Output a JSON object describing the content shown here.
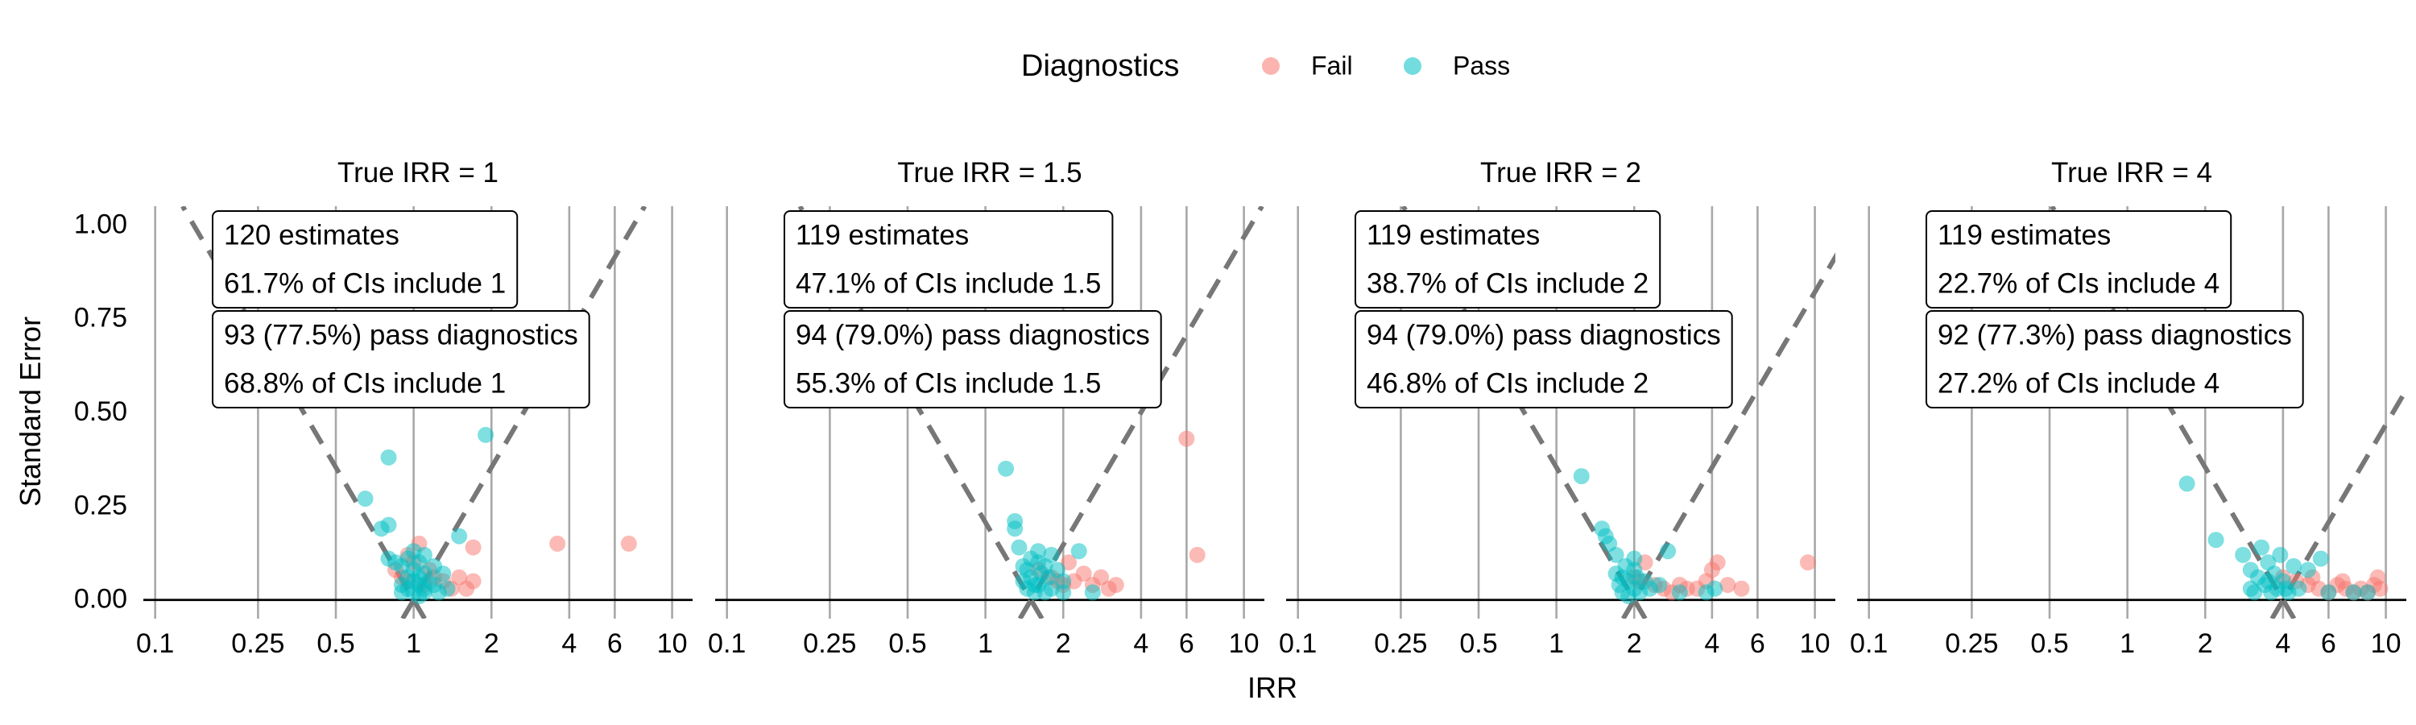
{
  "chart_data": {
    "type": "scatter",
    "facet_label": "True IRR",
    "xlabel": "IRR",
    "ylabel": "Standard Error",
    "x_scale": "log",
    "xlim": [
      0.09,
      12
    ],
    "ylim": [
      -0.05,
      1.05
    ],
    "x_ticks": [
      0.1,
      0.25,
      0.5,
      1,
      2,
      4,
      6,
      10
    ],
    "x_tick_labels": [
      "0.1",
      "0.25",
      "0.5",
      "1",
      "2",
      "4",
      "6",
      "10"
    ],
    "y_ticks": [
      0,
      0.25,
      0.5,
      0.75,
      1.0
    ],
    "y_tick_labels": [
      "0.00",
      "0.25",
      "0.50",
      "0.75",
      "1.00"
    ],
    "grid": true,
    "legend": {
      "title": "Diagnostics",
      "position": "top",
      "entries": [
        {
          "name": "Fail",
          "color": "#F8766D"
        },
        {
          "name": "Pass",
          "color": "#00BFC4"
        }
      ]
    },
    "panels": [
      {
        "title": "True IRR = 1",
        "true_irr": 1,
        "annotation_all": [
          "120 estimates",
          "61.7% of CIs include 1"
        ],
        "annotation_pass": [
          "93 (77.5%) pass diagnostics",
          "68.8% of CIs include 1"
        ],
        "series": [
          {
            "name": "Fail",
            "points": [
              [
                0.85,
                0.08
              ],
              [
                0.9,
                0.06
              ],
              [
                0.95,
                0.05
              ],
              [
                1.0,
                0.1
              ],
              [
                1.05,
                0.15
              ],
              [
                1.1,
                0.04
              ],
              [
                1.2,
                0.06
              ],
              [
                1.3,
                0.05
              ],
              [
                1.4,
                0.03
              ],
              [
                1.5,
                0.06
              ],
              [
                1.6,
                0.03
              ],
              [
                1.7,
                0.05
              ],
              [
                1.7,
                0.14
              ],
              [
                3.6,
                0.15
              ],
              [
                6.8,
                0.15
              ],
              [
                0.95,
                0.12
              ],
              [
                1.15,
                0.08
              ]
            ]
          },
          {
            "name": "Pass",
            "points": [
              [
                0.65,
                0.27
              ],
              [
                0.75,
                0.19
              ],
              [
                0.8,
                0.38
              ],
              [
                0.8,
                0.2
              ],
              [
                0.8,
                0.11
              ],
              [
                0.85,
                0.1
              ],
              [
                0.9,
                0.09
              ],
              [
                0.9,
                0.04
              ],
              [
                0.9,
                0.02
              ],
              [
                0.95,
                0.06
              ],
              [
                0.95,
                0.03
              ],
              [
                1.0,
                0.08
              ],
              [
                1.0,
                0.05
              ],
              [
                1.0,
                0.02
              ],
              [
                1.05,
                0.1
              ],
              [
                1.05,
                0.04
              ],
              [
                1.05,
                0.01
              ],
              [
                1.1,
                0.12
              ],
              [
                1.1,
                0.07
              ],
              [
                1.1,
                0.03
              ],
              [
                1.15,
                0.05
              ],
              [
                1.2,
                0.09
              ],
              [
                1.2,
                0.04
              ],
              [
                1.25,
                0.02
              ],
              [
                1.3,
                0.07
              ],
              [
                1.35,
                0.03
              ],
              [
                1.5,
                0.17
              ],
              [
                1.9,
                0.44
              ],
              [
                1.0,
                0.13
              ],
              [
                0.95,
                0.11
              ],
              [
                1.05,
                0.06
              ],
              [
                1.1,
                0.02
              ]
            ]
          }
        ]
      },
      {
        "title": "True IRR = 1.5",
        "true_irr": 1.5,
        "annotation_all": [
          "119 estimates",
          "47.1% of CIs include 1.5"
        ],
        "annotation_pass": [
          "94 (79.0%) pass diagnostics",
          "55.3% of CIs include 1.5"
        ],
        "series": [
          {
            "name": "Fail",
            "points": [
              [
                1.6,
                0.08
              ],
              [
                1.8,
                0.06
              ],
              [
                2.0,
                0.04
              ],
              [
                2.2,
                0.05
              ],
              [
                2.4,
                0.07
              ],
              [
                2.6,
                0.04
              ],
              [
                2.8,
                0.06
              ],
              [
                3.0,
                0.03
              ],
              [
                3.2,
                0.04
              ],
              [
                6.0,
                0.43
              ],
              [
                6.6,
                0.12
              ],
              [
                2.1,
                0.1
              ],
              [
                1.9,
                0.05
              ]
            ]
          },
          {
            "name": "Pass",
            "points": [
              [
                1.2,
                0.35
              ],
              [
                1.3,
                0.21
              ],
              [
                1.3,
                0.19
              ],
              [
                1.35,
                0.14
              ],
              [
                1.4,
                0.09
              ],
              [
                1.4,
                0.05
              ],
              [
                1.45,
                0.03
              ],
              [
                1.5,
                0.11
              ],
              [
                1.5,
                0.06
              ],
              [
                1.55,
                0.02
              ],
              [
                1.6,
                0.1
              ],
              [
                1.6,
                0.13
              ],
              [
                1.6,
                0.04
              ],
              [
                1.65,
                0.07
              ],
              [
                1.7,
                0.02
              ],
              [
                1.75,
                0.06
              ],
              [
                1.8,
                0.12
              ],
              [
                1.8,
                0.03
              ],
              [
                1.9,
                0.08
              ],
              [
                2.0,
                0.02
              ],
              [
                2.0,
                0.05
              ],
              [
                2.3,
                0.13
              ],
              [
                2.6,
                0.02
              ],
              [
                1.45,
                0.08
              ],
              [
                1.55,
                0.04
              ],
              [
                1.7,
                0.09
              ]
            ]
          }
        ]
      },
      {
        "title": "True IRR = 2",
        "true_irr": 2,
        "annotation_all": [
          "119 estimates",
          "38.7% of CIs include 2"
        ],
        "annotation_pass": [
          "94 (79.0%) pass diagnostics",
          "46.8% of CIs include 2"
        ],
        "series": [
          {
            "name": "Fail",
            "points": [
              [
                2.0,
                0.06
              ],
              [
                2.2,
                0.1
              ],
              [
                2.4,
                0.04
              ],
              [
                2.6,
                0.03
              ],
              [
                2.8,
                0.02
              ],
              [
                3.0,
                0.04
              ],
              [
                3.2,
                0.03
              ],
              [
                3.5,
                0.03
              ],
              [
                3.8,
                0.05
              ],
              [
                4.0,
                0.08
              ],
              [
                4.2,
                0.1
              ],
              [
                4.6,
                0.04
              ],
              [
                5.2,
                0.03
              ],
              [
                9.4,
                0.1
              ],
              [
                2.1,
                0.05
              ]
            ]
          },
          {
            "name": "Pass",
            "points": [
              [
                1.25,
                0.33
              ],
              [
                1.5,
                0.19
              ],
              [
                1.55,
                0.17
              ],
              [
                1.6,
                0.15
              ],
              [
                1.7,
                0.12
              ],
              [
                1.7,
                0.07
              ],
              [
                1.75,
                0.04
              ],
              [
                1.8,
                0.02
              ],
              [
                1.85,
                0.09
              ],
              [
                1.9,
                0.05
              ],
              [
                1.9,
                0.01
              ],
              [
                2.0,
                0.08
              ],
              [
                2.0,
                0.03
              ],
              [
                2.05,
                0.06
              ],
              [
                2.1,
                0.02
              ],
              [
                2.2,
                0.05
              ],
              [
                2.3,
                0.03
              ],
              [
                2.5,
                0.04
              ],
              [
                2.7,
                0.13
              ],
              [
                3.0,
                0.02
              ],
              [
                3.8,
                0.02
              ],
              [
                4.1,
                0.03
              ],
              [
                1.8,
                0.06
              ],
              [
                2.0,
                0.11
              ]
            ]
          }
        ]
      },
      {
        "title": "True IRR = 4",
        "true_irr": 4,
        "annotation_all": [
          "119 estimates",
          "22.7% of CIs include 4"
        ],
        "annotation_pass": [
          "92 (77.3%) pass diagnostics",
          "27.2% of CIs include 4"
        ],
        "series": [
          {
            "name": "Fail",
            "points": [
              [
                4.0,
                0.06
              ],
              [
                4.5,
                0.05
              ],
              [
                5.0,
                0.04
              ],
              [
                5.5,
                0.03
              ],
              [
                6.0,
                0.02
              ],
              [
                6.5,
                0.04
              ],
              [
                7.0,
                0.03
              ],
              [
                7.5,
                0.02
              ],
              [
                8.0,
                0.03
              ],
              [
                8.5,
                0.02
              ],
              [
                9.0,
                0.04
              ],
              [
                9.3,
                0.06
              ],
              [
                9.5,
                0.03
              ],
              [
                6.8,
                0.05
              ],
              [
                5.2,
                0.06
              ]
            ]
          },
          {
            "name": "Pass",
            "points": [
              [
                1.7,
                0.31
              ],
              [
                2.2,
                0.16
              ],
              [
                2.8,
                0.12
              ],
              [
                3.0,
                0.08
              ],
              [
                3.0,
                0.03
              ],
              [
                3.1,
                0.02
              ],
              [
                3.2,
                0.06
              ],
              [
                3.3,
                0.14
              ],
              [
                3.4,
                0.04
              ],
              [
                3.5,
                0.1
              ],
              [
                3.6,
                0.02
              ],
              [
                3.7,
                0.07
              ],
              [
                3.8,
                0.03
              ],
              [
                3.9,
                0.12
              ],
              [
                4.0,
                0.05
              ],
              [
                4.2,
                0.02
              ],
              [
                4.4,
                0.09
              ],
              [
                4.6,
                0.03
              ],
              [
                5.0,
                0.08
              ],
              [
                5.6,
                0.11
              ],
              [
                6.0,
                0.02
              ],
              [
                7.5,
                0.02
              ],
              [
                8.5,
                0.02
              ],
              [
                3.5,
                0.05
              ],
              [
                4.1,
                0.03
              ]
            ]
          }
        ]
      }
    ]
  }
}
